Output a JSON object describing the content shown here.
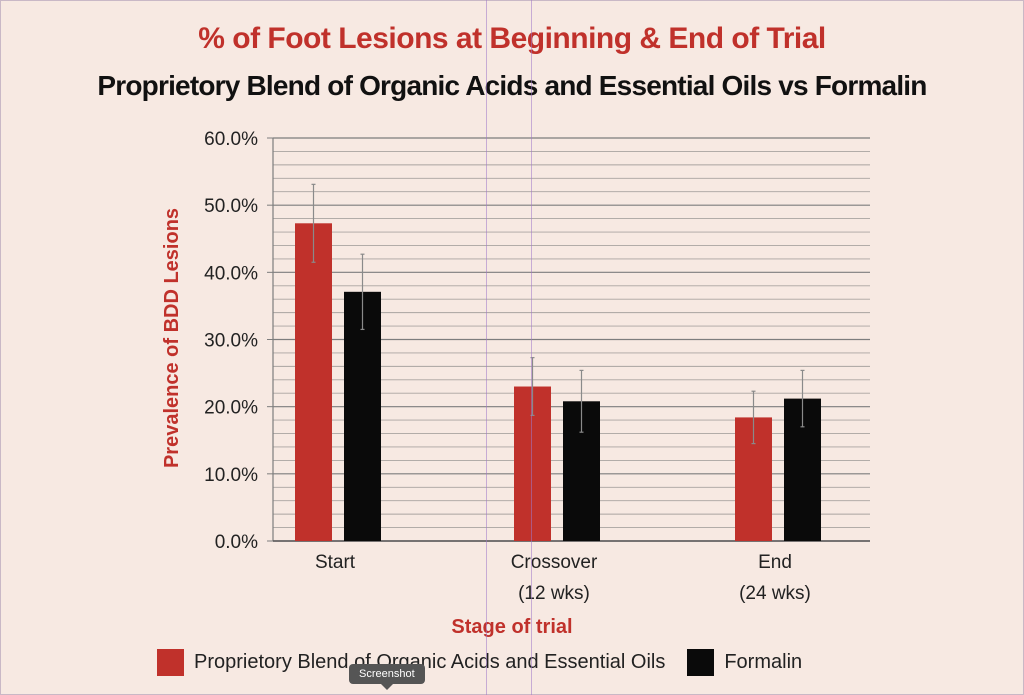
{
  "chart_data": {
    "type": "bar",
    "title": "% of Foot Lesions at Beginning & End of Trial",
    "subtitle": "Proprietory Blend of Organic Acids and Essential Oils vs Formalin",
    "xlabel": "Stage of trial",
    "ylabel": "Prevalence of BDD Lesions",
    "categories": [
      "Start",
      "Crossover\n(12 wks)",
      "End\n(24 wks)"
    ],
    "ylim": [
      0,
      60
    ],
    "yticks": [
      "0.0%",
      "10.0%",
      "20.0%",
      "30.0%",
      "40.0%",
      "50.0%",
      "60.0%"
    ],
    "minor_grid_step": 2,
    "series": [
      {
        "name": "Proprietory Blend of Organic Acids and Essential Oils",
        "color": "#c0312b",
        "values": [
          47.3,
          23.0,
          18.4
        ],
        "errors": [
          5.8,
          4.3,
          3.9
        ]
      },
      {
        "name": "Formalin",
        "color": "#0a0a0a",
        "values": [
          37.1,
          20.8,
          21.2
        ],
        "errors": [
          5.6,
          4.6,
          4.2
        ]
      }
    ],
    "legend_position": "bottom",
    "grid": true
  },
  "overlay": {
    "tooltip": "Screenshot"
  }
}
